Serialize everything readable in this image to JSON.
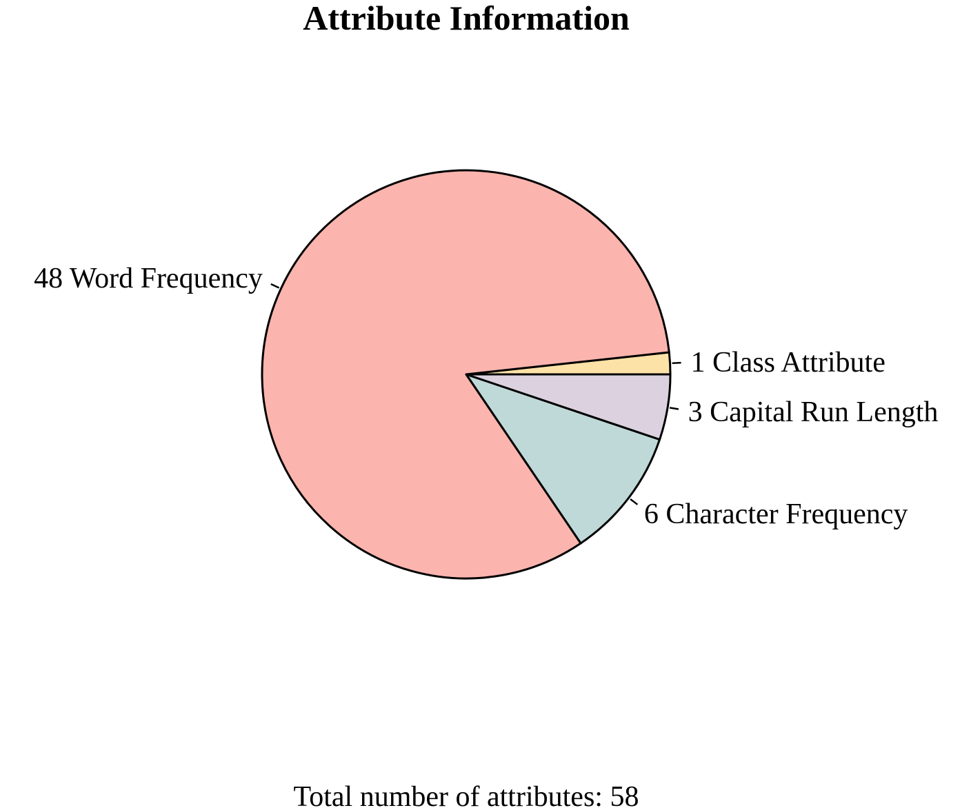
{
  "chart_data": {
    "type": "pie",
    "title": "Attribute Information",
    "caption": "Total number of attributes: 58",
    "start_angle_deg": 0,
    "direction": "counterclockwise",
    "slices": [
      {
        "label": "1 Class Attribute",
        "value": 1,
        "color": "#FDE2A8"
      },
      {
        "label": "48 Word Frequency",
        "value": 48,
        "color": "#FBB4AE"
      },
      {
        "label": "6 Character Frequency",
        "value": 6,
        "color": "#BFD9D8"
      },
      {
        "label": "3 Capital Run Length",
        "value": 3,
        "color": "#DCD2DF"
      }
    ],
    "outline_color": "#000000"
  }
}
